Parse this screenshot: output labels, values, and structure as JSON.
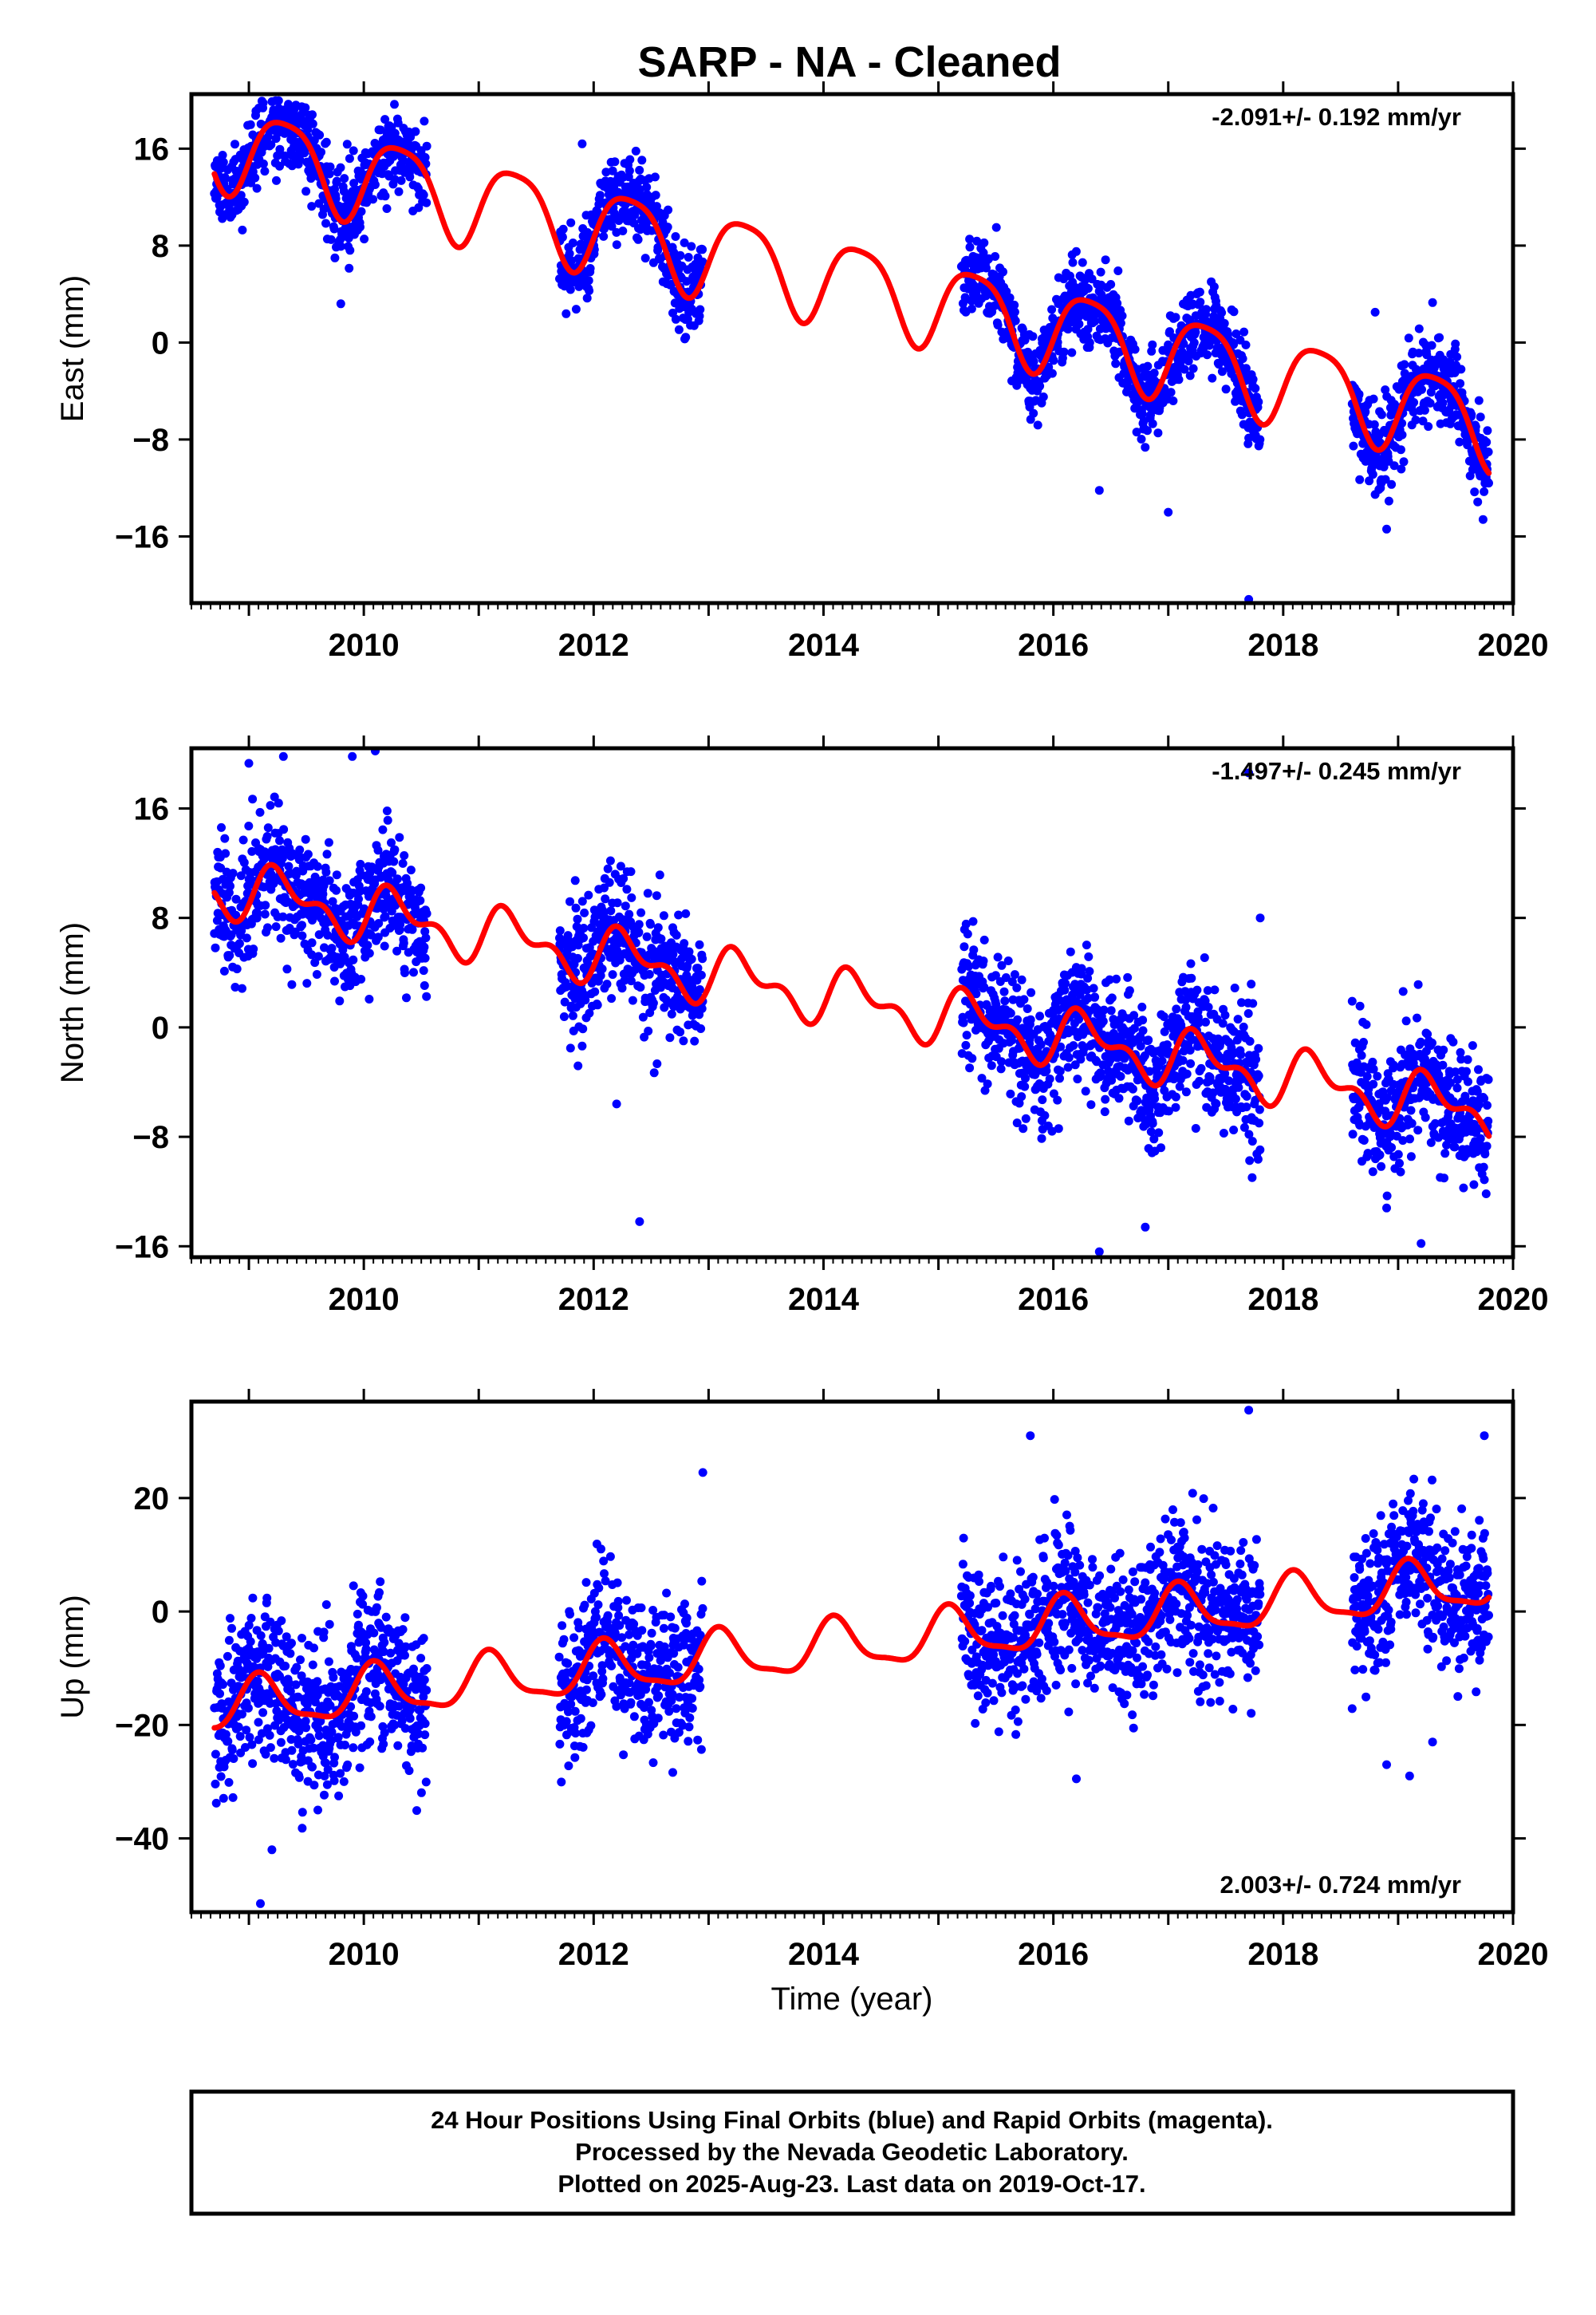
{
  "footer": {
    "lines": [
      "24 Hour Positions Using Final Orbits (blue) and Rapid Orbits (magenta).",
      "Processed by the Nevada Geodetic Laboratory.",
      "Plotted on 2025-Aug-23. Last data on 2019-Oct-17."
    ]
  },
  "colors": {
    "final_orbit_points": "#0000ff",
    "rapid_orbit_points": "#ff00ff",
    "model_curve": "#ff0000",
    "frame": "#000000"
  },
  "chart_data": [
    {
      "type": "scatter",
      "title": "SARP  - NA - Cleaned",
      "xlabel": "",
      "ylabel": "East (mm)",
      "xlim": [
        2008.5,
        2020.0
      ],
      "ylim": [
        -21.5,
        20.5
      ],
      "xticks": [
        2010,
        2012,
        2014,
        2016,
        2018,
        2020
      ],
      "yticks": [
        16,
        8,
        0,
        -8,
        -16
      ],
      "ytick_labels": [
        "16",
        "8",
        "0",
        "−8",
        "−16"
      ],
      "grid": false,
      "annotation": "-2.091+/- 0.192 mm/yr",
      "annotation_position": "top-right",
      "model": {
        "name": "",
        "offset": 16.5,
        "rate": -2.091,
        "epoch": 2008.7,
        "annual_sin": 3.2,
        "annual_cos": -1.4,
        "semiannual_sin": 0.6,
        "semiannual_cos": 0.4
      },
      "observations": {
        "scatter_mm": 1.7,
        "segments": [
          [
            2008.7,
            2010.55
          ],
          [
            2011.7,
            2012.95
          ],
          [
            2015.2,
            2017.8
          ],
          [
            2018.6,
            2019.79
          ]
        ],
        "outliers": [
          [
            2011.9,
            16.4
          ],
          [
            2017.7,
            -21.2
          ],
          [
            2016.4,
            -12.2
          ],
          [
            2017.0,
            -14.0
          ],
          [
            2018.9,
            -15.4
          ],
          [
            2016.5,
            4.8
          ],
          [
            2017.4,
            4.6
          ],
          [
            2018.8,
            2.5
          ],
          [
            2019.3,
            3.3
          ],
          [
            2009.8,
            3.2
          ]
        ]
      }
    },
    {
      "type": "scatter",
      "title": "",
      "xlabel": "",
      "ylabel": "North (mm)",
      "xlim": [
        2008.5,
        2020.0
      ],
      "ylim": [
        -16.8,
        20.4
      ],
      "xticks": [
        2010,
        2012,
        2014,
        2016,
        2018,
        2020
      ],
      "yticks": [
        16,
        8,
        0,
        -8,
        -16
      ],
      "ytick_labels": [
        "16",
        "8",
        "0",
        "−8",
        "−16"
      ],
      "grid": false,
      "annotation": "-1.497+/- 0.245 mm/yr",
      "annotation_position": "top-right",
      "model": {
        "name": "",
        "offset": 10.3,
        "rate": -1.497,
        "epoch": 2008.7,
        "annual_sin": 1.6,
        "annual_cos": -0.4,
        "semiannual_sin": 0.9,
        "semiannual_cos": -0.5
      },
      "observations": {
        "scatter_mm": 2.3,
        "segments": [
          [
            2008.7,
            2010.55
          ],
          [
            2011.7,
            2012.95
          ],
          [
            2015.2,
            2017.8
          ],
          [
            2018.6,
            2019.79
          ]
        ],
        "outliers": [
          [
            2009.3,
            19.8
          ],
          [
            2009.0,
            19.3
          ],
          [
            2009.9,
            19.8
          ],
          [
            2010.1,
            20.2
          ],
          [
            2017.7,
            18.6
          ],
          [
            2012.4,
            -14.2
          ],
          [
            2016.4,
            -16.4
          ],
          [
            2016.8,
            -14.6
          ],
          [
            2018.9,
            -13.2
          ],
          [
            2019.2,
            -15.8
          ],
          [
            2012.2,
            -5.6
          ],
          [
            2017.8,
            8.0
          ]
        ]
      }
    },
    {
      "type": "scatter",
      "title": "",
      "xlabel": "Time (year)",
      "ylabel": "Up (mm)",
      "xlim": [
        2008.5,
        2020.0
      ],
      "ylim": [
        -53.0,
        37.0
      ],
      "xticks": [
        2010,
        2012,
        2014,
        2016,
        2018,
        2020
      ],
      "yticks": [
        20,
        0,
        -20,
        -40
      ],
      "ytick_labels": [
        "20",
        "0",
        "−20",
        "−40"
      ],
      "grid": false,
      "annotation": "2.003+/- 0.724 mm/yr",
      "annotation_position": "bottom-right",
      "model": {
        "name": "",
        "offset": -17.0,
        "rate": 2.003,
        "epoch": 2008.7,
        "annual_sin": 2.5,
        "annual_cos": 3.5,
        "semiannual_sin": 1.0,
        "semiannual_cos": 0.8
      },
      "observations": {
        "scatter_mm": 6.5,
        "segments": [
          [
            2008.7,
            2010.55
          ],
          [
            2011.7,
            2012.95
          ],
          [
            2015.2,
            2017.8
          ],
          [
            2018.6,
            2019.79
          ]
        ],
        "outliers": [
          [
            2009.1,
            -51.5
          ],
          [
            2009.2,
            -42.0
          ],
          [
            2015.8,
            31.0
          ],
          [
            2017.7,
            35.5
          ],
          [
            2019.75,
            31.0
          ],
          [
            2012.95,
            24.5
          ],
          [
            2016.2,
            -29.5
          ],
          [
            2018.9,
            -27.0
          ],
          [
            2019.1,
            -29.0
          ],
          [
            2019.3,
            -23.0
          ],
          [
            2009.6,
            -35.0
          ]
        ]
      }
    }
  ]
}
